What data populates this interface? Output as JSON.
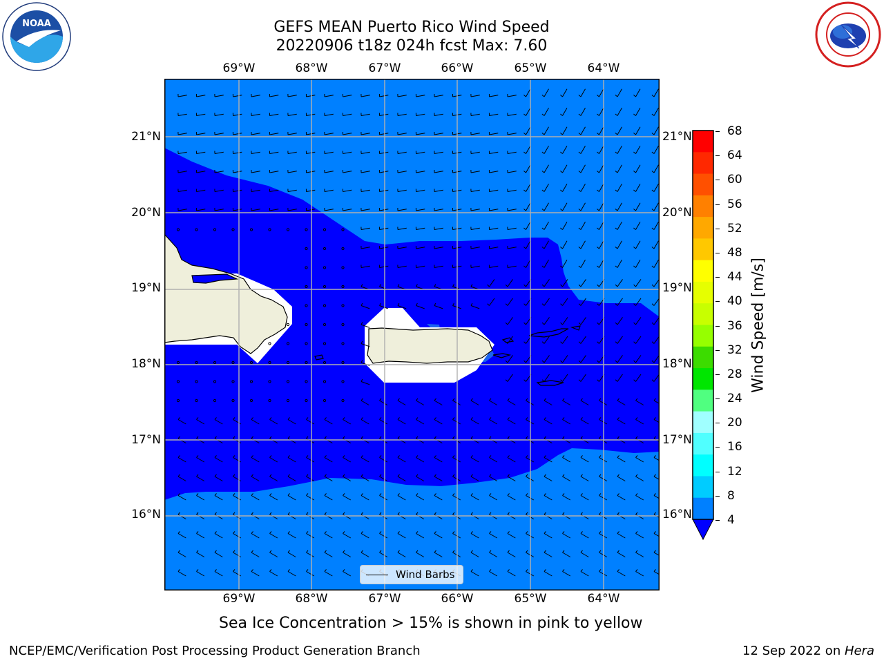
{
  "title": {
    "line1": "GEFS MEAN Puerto Rico Wind Speed",
    "line2": "20220906 t18z 024h fcst   Max: 7.60"
  },
  "logos": {
    "noaa": {
      "icon": "noaa-logo",
      "text": "NOAA",
      "ring_text": "NATIONAL OCEANIC AND ATMOSPHERIC ADMINISTRATION · U.S. DEPARTMENT OF COMMERCE"
    },
    "nws": {
      "icon": "national-weather-service-logo",
      "ring_text": "NATIONAL WEATHER SERVICE"
    }
  },
  "map": {
    "extent": {
      "lon": [
        -70.0,
        -63.25
      ],
      "lat": [
        15.0,
        21.7
      ]
    },
    "lon_ticks": [
      "69°W",
      "68°W",
      "67°W",
      "66°W",
      "65°W",
      "64°W"
    ],
    "lat_ticks": [
      "21°N",
      "20°N",
      "19°N",
      "18°N",
      "17°N",
      "16°N"
    ],
    "gridlines": true,
    "background_color": "#0080ff",
    "low_wind_color": "#0000ff",
    "land_color": "#efefdb",
    "places": [
      "Hispaniola",
      "Puerto Rico",
      "Vieques",
      "Culebra",
      "Virgin Islands",
      "St. Croix",
      "Mona Island"
    ],
    "legend": {
      "label": "Wind Barbs"
    }
  },
  "colorbar": {
    "label": "Wind Speed [m/s]",
    "ticks": [
      "68",
      "64",
      "60",
      "56",
      "52",
      "48",
      "44",
      "40",
      "36",
      "32",
      "28",
      "24",
      "20",
      "16",
      "12",
      "8",
      "4"
    ],
    "colors_top_to_bottom": [
      "#ff0000",
      "#ff2800",
      "#ff5000",
      "#ff8000",
      "#ffa800",
      "#ffc800",
      "#ffff00",
      "#e6ff00",
      "#c8ff00",
      "#96ff00",
      "#3cdc00",
      "#00e600",
      "#50ff80",
      "#a0ffff",
      "#50ffff",
      "#00ffff",
      "#00ccff",
      "#0080ff"
    ],
    "extend_color": "#0000ff"
  },
  "note": "Sea Ice Concentration > 15% is shown in pink to yellow",
  "footer": {
    "left": "NCEP/EMC/Verification Post Processing Product Generation Branch",
    "date": "12 Sep 2022 on ",
    "machine": "Hera"
  }
}
